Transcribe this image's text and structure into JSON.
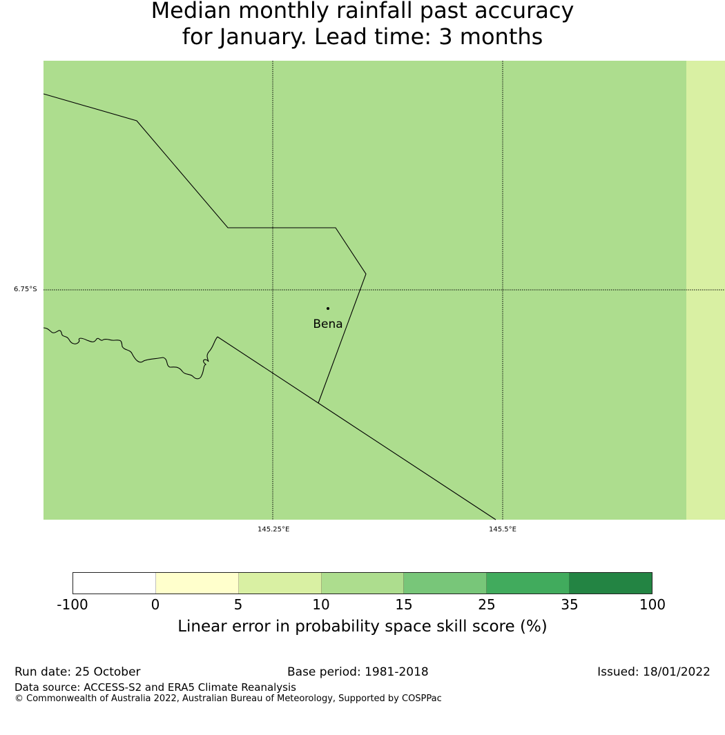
{
  "title_line1": "Median monthly rainfall past accuracy",
  "title_line2": "for January. Lead time: 3 months",
  "map": {
    "lat_label": "6.75°S",
    "lon_labels": [
      "145.25°E",
      "145.5°E"
    ],
    "place_label": "Bena",
    "fill_color": "#addd8e",
    "edge_color": "#d9f0a3"
  },
  "colorbar": {
    "title": "Linear error in probability space skill score (%)",
    "ticks": [
      "-100",
      "0",
      "5",
      "10",
      "15",
      "25",
      "35",
      "100"
    ],
    "colors": [
      "#ffffff",
      "#ffffcc",
      "#d9f0a3",
      "#addd8e",
      "#78c679",
      "#41ab5d",
      "#238443"
    ]
  },
  "footer": {
    "run_date": "Run date: 25 October",
    "base_period": "Base period: 1981-2018",
    "issued": "Issued: 18/01/2022",
    "data_source": "Data source: ACCESS-S2 and ERA5 Climate Reanalysis",
    "copyright": "© Commonwealth of Australia 2022, Australian Bureau of Meteorology, Supported by COSPPac"
  }
}
